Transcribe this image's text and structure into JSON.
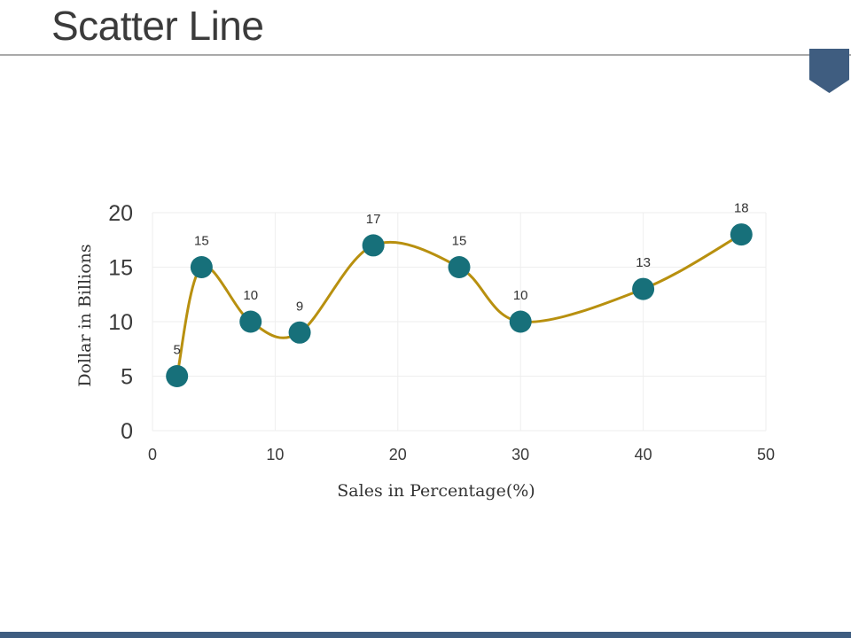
{
  "slide": {
    "title": "Scatter Line"
  },
  "colors": {
    "accent": "#3f5d80",
    "line": "#b8900f",
    "marker": "#17707a",
    "grid": "#eeeeee",
    "rule": "#a9a9a9"
  },
  "icons": {
    "corner_badge": "pentagon-bookmark-icon"
  },
  "chart_data": {
    "type": "scatter",
    "line_style": "smooth",
    "title": "",
    "xlabel": "Sales in Percentage(%)",
    "ylabel": "Dollar in Billions",
    "xlim": [
      0,
      50
    ],
    "ylim": [
      0,
      20
    ],
    "x_ticks": [
      0,
      10,
      20,
      30,
      40,
      50
    ],
    "y_ticks": [
      0,
      5,
      10,
      15,
      20
    ],
    "grid": true,
    "legend": "none",
    "series": [
      {
        "points": [
          {
            "x": 2,
            "y": 5,
            "label": "5"
          },
          {
            "x": 4,
            "y": 15,
            "label": "15"
          },
          {
            "x": 8,
            "y": 10,
            "label": "10"
          },
          {
            "x": 12,
            "y": 9,
            "label": "9"
          },
          {
            "x": 18,
            "y": 17,
            "label": "17"
          },
          {
            "x": 25,
            "y": 15,
            "label": "15"
          },
          {
            "x": 30,
            "y": 10,
            "label": "10"
          },
          {
            "x": 40,
            "y": 13,
            "label": "13"
          },
          {
            "x": 48,
            "y": 18,
            "label": "18"
          }
        ]
      }
    ]
  }
}
